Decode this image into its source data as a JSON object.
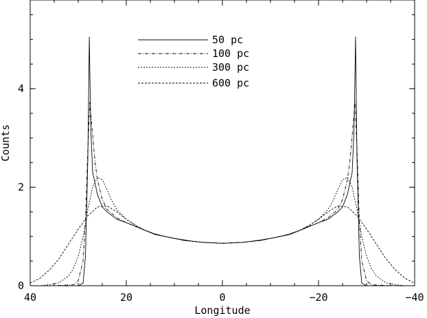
{
  "chart_data": {
    "type": "line",
    "xlabel": "Longitude",
    "ylabel": "Counts",
    "xlim": [
      40,
      -40
    ],
    "ylim": [
      0,
      5.8
    ],
    "xticks": [
      40,
      20,
      0,
      -20,
      -40
    ],
    "yticks": [
      0,
      2,
      4
    ],
    "x_tick_labels": [
      "40",
      "20",
      "0",
      "−20",
      "−40"
    ],
    "y_tick_labels": [
      "0",
      "2",
      "4"
    ],
    "grid": false,
    "legend_position": "top-center",
    "series": [
      {
        "name": "50 pc",
        "style": "solid",
        "x": [
          40,
          35,
          30,
          29,
          28.5,
          28,
          27.7,
          27.4,
          27,
          26,
          25,
          24,
          22,
          20,
          18,
          16,
          14,
          12,
          10,
          8,
          6,
          4,
          2,
          0,
          -2,
          -4,
          -6,
          -8,
          -10,
          -12,
          -14,
          -16,
          -18,
          -20,
          -22,
          -24,
          -25,
          -26,
          -27,
          -27.4,
          -27.7,
          -28,
          -28.5,
          -29,
          -30,
          -35,
          -40
        ],
        "y": [
          0.0,
          0.0,
          0.0,
          0.05,
          0.6,
          2.6,
          5.05,
          3.2,
          2.3,
          1.85,
          1.6,
          1.5,
          1.35,
          1.28,
          1.2,
          1.12,
          1.04,
          1.0,
          0.96,
          0.92,
          0.9,
          0.88,
          0.87,
          0.86,
          0.87,
          0.88,
          0.9,
          0.92,
          0.96,
          1.0,
          1.04,
          1.12,
          1.2,
          1.28,
          1.35,
          1.5,
          1.6,
          1.85,
          2.3,
          3.2,
          5.05,
          2.6,
          0.6,
          0.05,
          0.0,
          0.0,
          0.0
        ]
      },
      {
        "name": "100 pc",
        "style": "dash-dot",
        "x": [
          40,
          35,
          31,
          30,
          29,
          28.5,
          28,
          27.6,
          27,
          26.5,
          26,
          25,
          24,
          22,
          20,
          18,
          16,
          14,
          12,
          10,
          8,
          6,
          4,
          2,
          0,
          -2,
          -4,
          -6,
          -8,
          -10,
          -12,
          -14,
          -16,
          -18,
          -20,
          -22,
          -24,
          -25,
          -26,
          -26.5,
          -27,
          -27.6,
          -28,
          -28.5,
          -29,
          -30,
          -31,
          -35,
          -40
        ],
        "y": [
          0.0,
          0.0,
          0.02,
          0.1,
          0.5,
          1.3,
          2.8,
          3.72,
          3.05,
          2.5,
          2.15,
          1.75,
          1.55,
          1.38,
          1.28,
          1.2,
          1.12,
          1.05,
          1.0,
          0.96,
          0.92,
          0.9,
          0.88,
          0.87,
          0.86,
          0.87,
          0.88,
          0.9,
          0.92,
          0.96,
          1.0,
          1.05,
          1.12,
          1.2,
          1.28,
          1.38,
          1.55,
          1.75,
          2.15,
          2.5,
          3.05,
          3.72,
          2.8,
          1.3,
          0.5,
          0.1,
          0.02,
          0.0,
          0.0
        ]
      },
      {
        "name": "300 pc",
        "style": "dotted",
        "x": [
          40,
          38,
          36,
          34,
          32,
          31,
          30,
          29,
          28,
          27,
          26,
          25,
          24,
          23,
          22,
          20,
          18,
          16,
          14,
          12,
          10,
          8,
          6,
          4,
          2,
          0,
          -2,
          -4,
          -6,
          -8,
          -10,
          -12,
          -14,
          -16,
          -18,
          -20,
          -22,
          -23,
          -24,
          -25,
          -26,
          -27,
          -28,
          -29,
          -30,
          -31,
          -32,
          -34,
          -36,
          -38,
          -40
        ],
        "y": [
          0.0,
          0.0,
          0.02,
          0.06,
          0.2,
          0.35,
          0.6,
          1.0,
          1.55,
          2.0,
          2.2,
          2.15,
          1.95,
          1.72,
          1.55,
          1.35,
          1.22,
          1.12,
          1.05,
          1.0,
          0.96,
          0.93,
          0.9,
          0.88,
          0.87,
          0.86,
          0.87,
          0.88,
          0.9,
          0.93,
          0.96,
          1.0,
          1.05,
          1.12,
          1.22,
          1.35,
          1.55,
          1.72,
          1.95,
          2.15,
          2.2,
          2.0,
          1.55,
          1.0,
          0.6,
          0.35,
          0.2,
          0.06,
          0.02,
          0.0,
          0.0
        ]
      },
      {
        "name": "600 pc",
        "style": "dashed",
        "x": [
          40,
          38,
          36,
          34,
          32,
          30,
          28,
          26,
          24,
          22,
          20,
          18,
          16,
          14,
          12,
          10,
          8,
          6,
          4,
          2,
          0,
          -2,
          -4,
          -6,
          -8,
          -10,
          -12,
          -14,
          -16,
          -18,
          -20,
          -22,
          -24,
          -26,
          -28,
          -30,
          -32,
          -34,
          -36,
          -38,
          -40
        ],
        "y": [
          0.05,
          0.15,
          0.32,
          0.55,
          0.85,
          1.15,
          1.42,
          1.6,
          1.62,
          1.5,
          1.35,
          1.22,
          1.12,
          1.05,
          1.0,
          0.96,
          0.93,
          0.9,
          0.88,
          0.87,
          0.86,
          0.87,
          0.88,
          0.9,
          0.93,
          0.96,
          1.0,
          1.05,
          1.12,
          1.22,
          1.35,
          1.5,
          1.62,
          1.6,
          1.42,
          1.15,
          0.85,
          0.55,
          0.32,
          0.15,
          0.05
        ]
      }
    ]
  }
}
